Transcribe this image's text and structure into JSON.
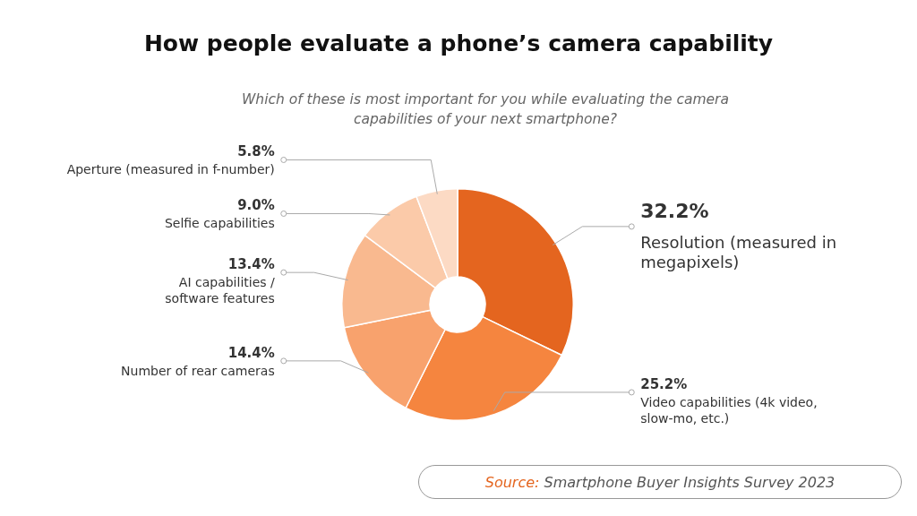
{
  "chart_data": {
    "type": "donut",
    "title": "How people evaluate a phone’s camera capability",
    "subtitle": "Which of these is most important for you while evaluating the camera capabilities of your next smartphone?",
    "categories": [
      "Resolution (measured in megapixels)",
      "Video capabilities (4k video, slow-mo, etc.)",
      "Number of rear cameras",
      "AI capabilities / software features",
      "Selfie capabilities",
      "Aperture (measured in f-number)"
    ],
    "values": [
      32.2,
      25.2,
      14.4,
      13.4,
      9.0,
      5.8
    ],
    "value_labels": [
      "32.2%",
      "25.2%",
      "14.4%",
      "13.4%",
      "9.0%",
      "5.8%"
    ],
    "colors": [
      "#e4651f",
      "#f5853f",
      "#f8a26d",
      "#f9b98f",
      "#fbcaa9",
      "#fcdac4"
    ],
    "annotations": [
      "Source: Smartphone Buyer Insights Survey 2023"
    ]
  }
}
